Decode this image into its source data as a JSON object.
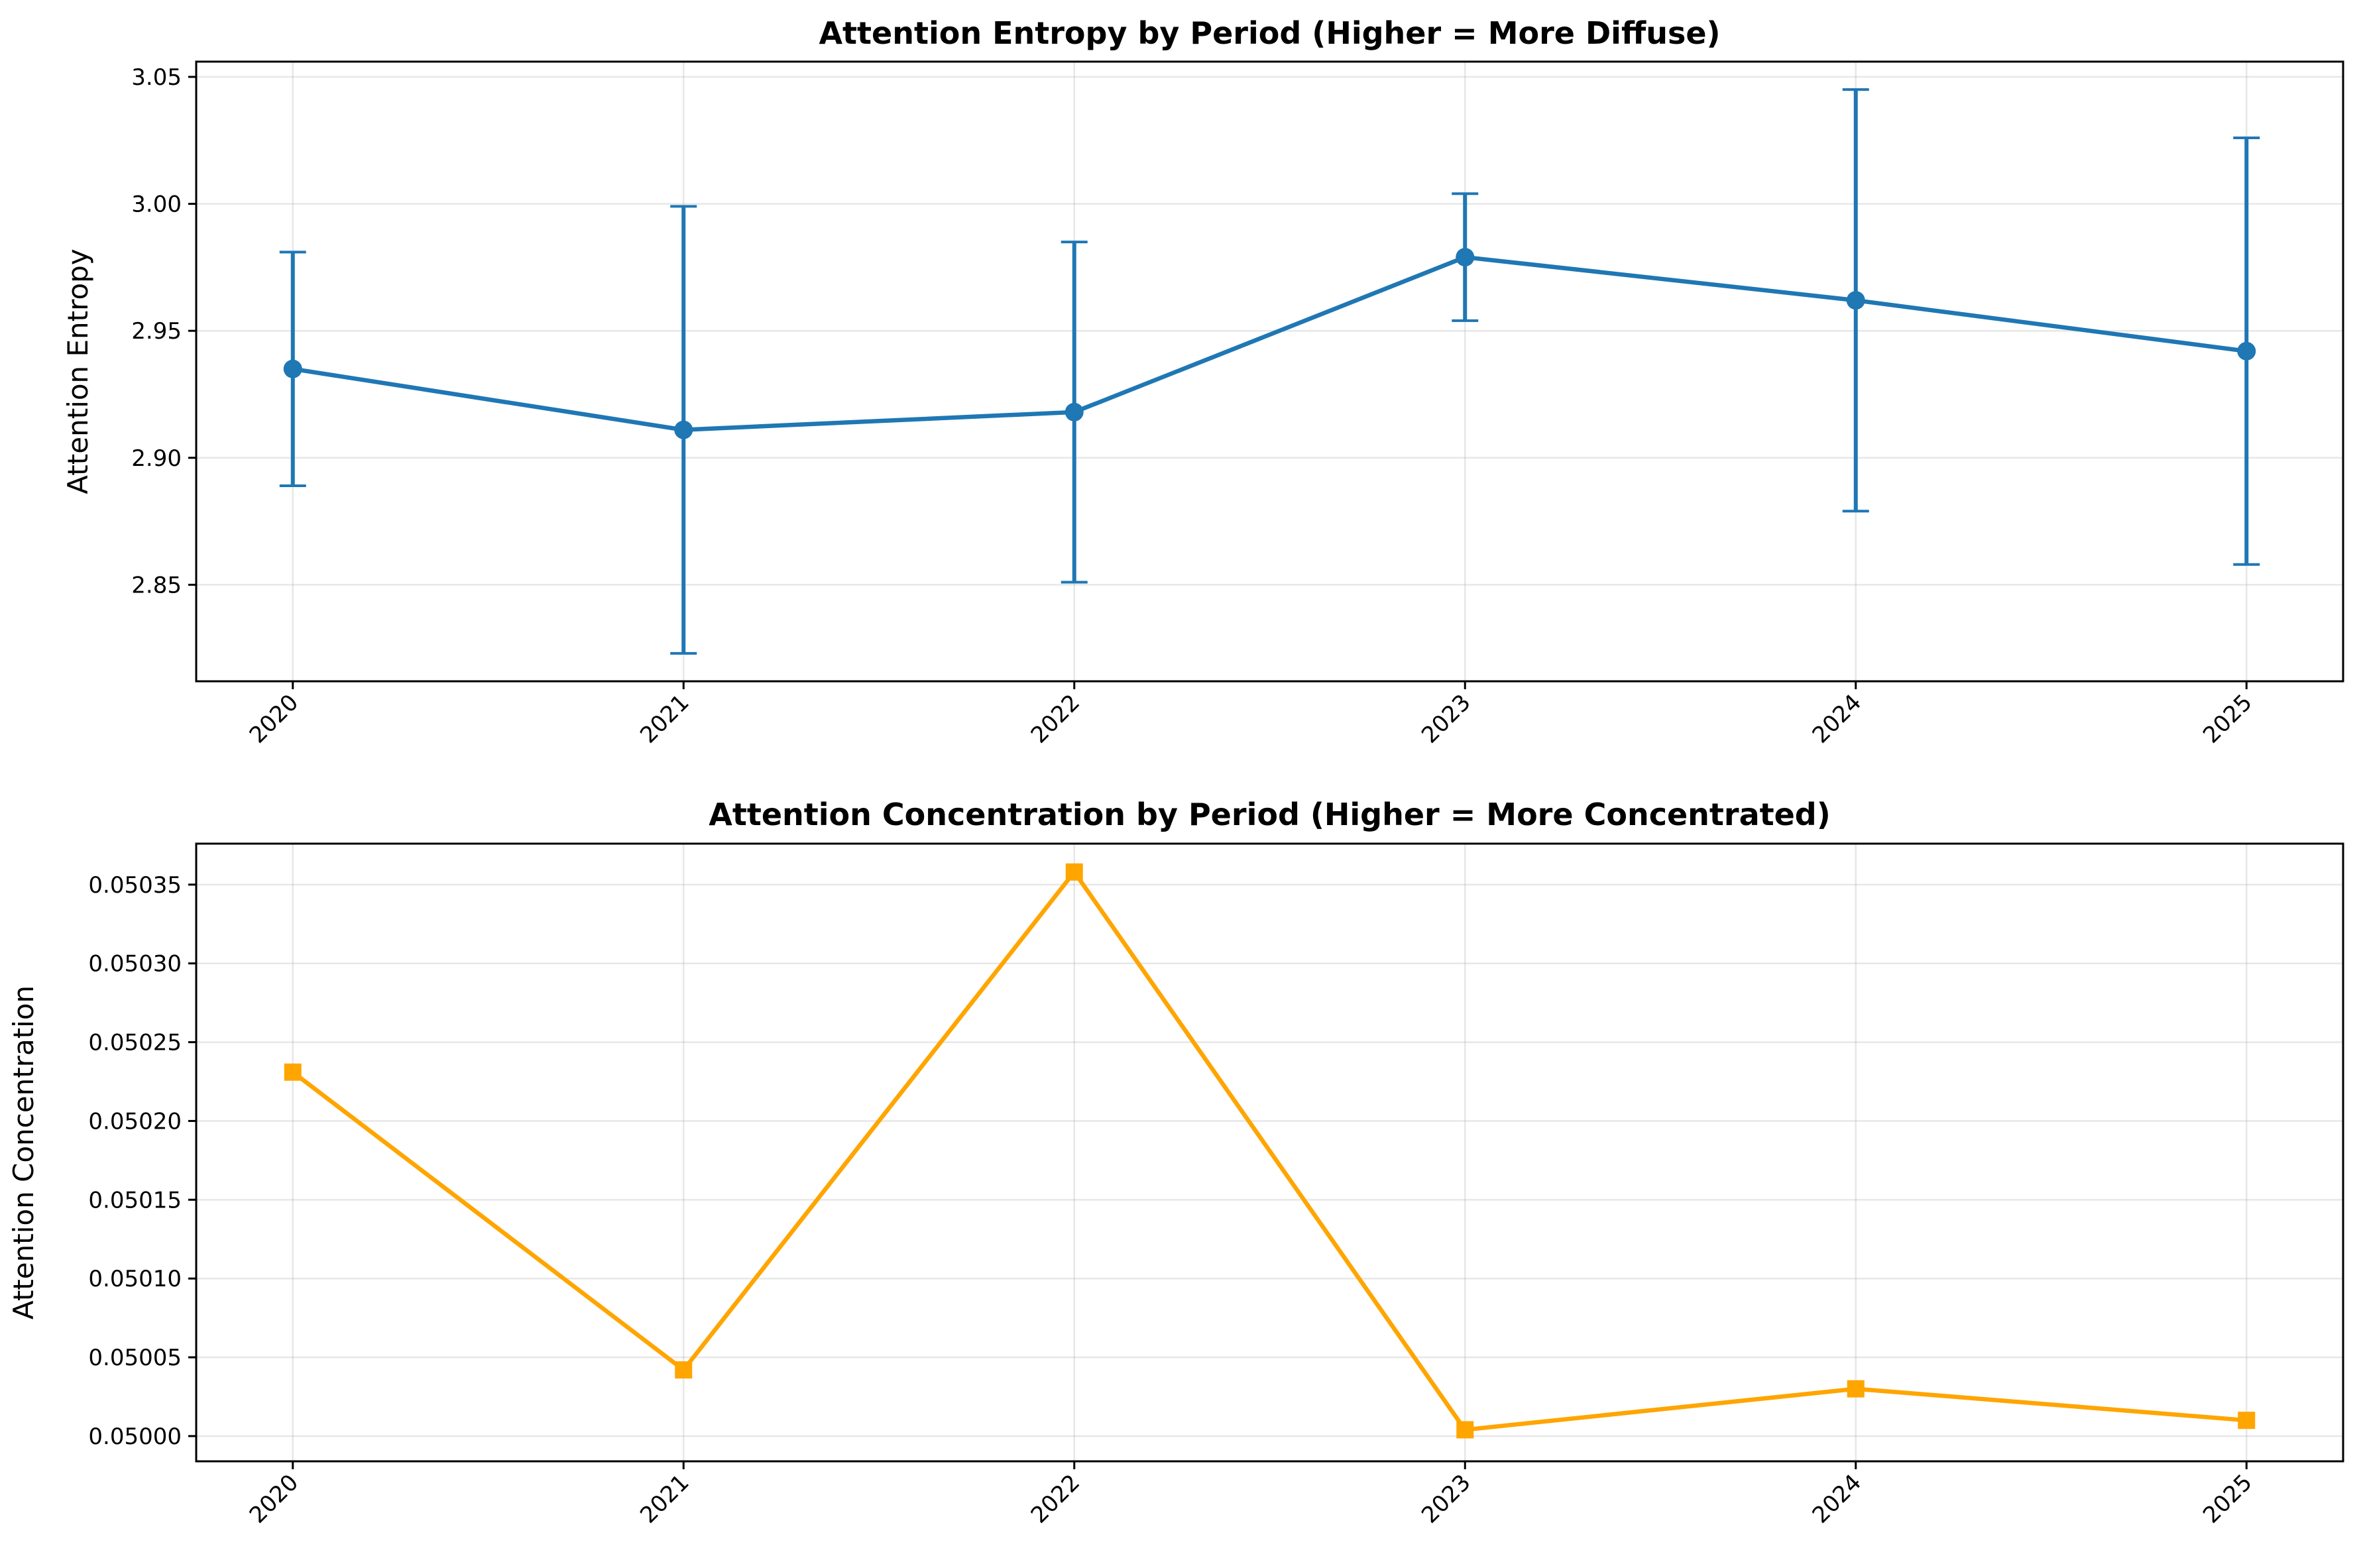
{
  "chart_data": [
    {
      "type": "line",
      "title": "Attention Entropy by Period (Higher = More Diffuse)",
      "xlabel": "",
      "ylabel": "Attention Entropy",
      "categories": [
        "2020",
        "2021",
        "2022",
        "2023",
        "2024",
        "2025"
      ],
      "values": [
        2.935,
        2.911,
        2.918,
        2.979,
        2.962,
        2.942
      ],
      "error": [
        0.046,
        0.088,
        0.067,
        0.025,
        0.083,
        0.084
      ],
      "ylim": [
        2.812,
        3.056
      ],
      "yticks": [
        "2.85",
        "2.90",
        "2.95",
        "3.00",
        "3.05"
      ],
      "marker": "circle",
      "color": "#1f77b4",
      "grid": true,
      "legend": "none"
    },
    {
      "type": "line",
      "title": "Attention Concentration by Period (Higher = More Concentrated)",
      "xlabel": "",
      "ylabel": "Attention Concentration",
      "categories": [
        "2020",
        "2021",
        "2022",
        "2023",
        "2024",
        "2025"
      ],
      "values": [
        0.050231,
        0.050042,
        0.050358,
        0.050004,
        0.05003,
        0.05001
      ],
      "ylim": [
        0.049984,
        0.050376
      ],
      "yticks": [
        "0.05000",
        "0.05005",
        "0.05010",
        "0.05015",
        "0.05020",
        "0.05025",
        "0.05030",
        "0.05035"
      ],
      "marker": "square",
      "color": "#ffa500",
      "grid": true,
      "legend": "none"
    }
  ]
}
